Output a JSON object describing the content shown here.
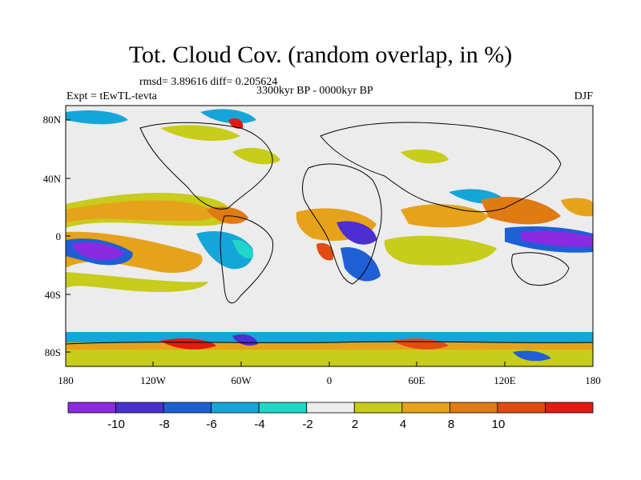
{
  "title": "Tot. Cloud Cov. (random overlap, in %)",
  "stats": "rmsd= 3.89616 diff= 0.205624",
  "experiment": "Expt = tEwTL-tevta",
  "period": "3300kyr BP - 0000kyr BP",
  "season": "DJF",
  "lat_ticks": [
    "80N",
    "40N",
    "0",
    "40S",
    "80S"
  ],
  "lon_ticks": [
    "180",
    "120W",
    "60W",
    "0",
    "60E",
    "120E",
    "180"
  ],
  "colorbar": {
    "colors": [
      "#8a2be2",
      "#4b2fd0",
      "#1f5fd6",
      "#14a6d8",
      "#20d6c8",
      "#ececec",
      "#c8cc1a",
      "#e6a21a",
      "#e07a12",
      "#e34b12",
      "#e31a12"
    ],
    "labels": [
      "-10",
      "-8",
      "-6",
      "-4",
      "-2",
      "2",
      "4",
      "8",
      "10"
    ]
  }
}
